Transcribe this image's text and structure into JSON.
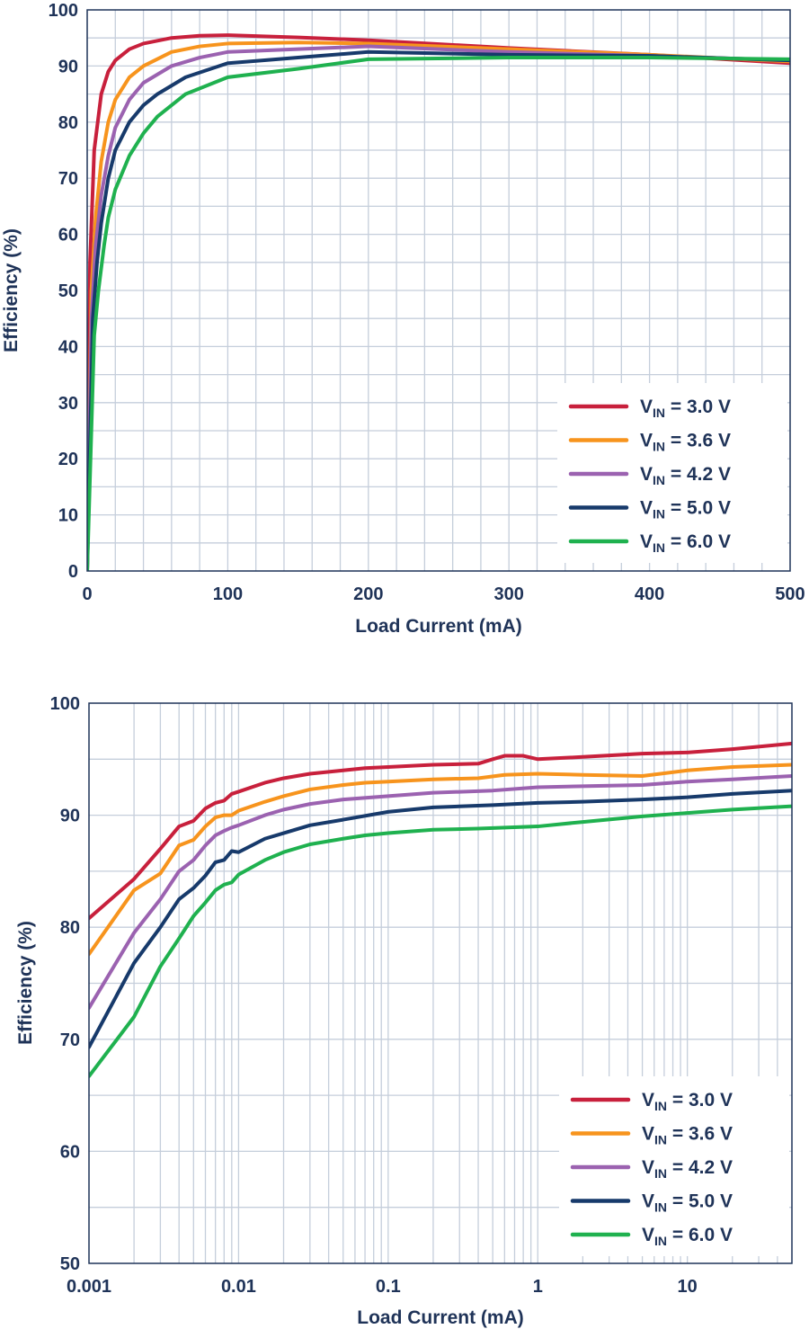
{
  "chart_data": [
    {
      "type": "line",
      "xscale": "linear",
      "xlabel": "Load Current (mA)",
      "ylabel": "Efficiency (%)",
      "xlim": [
        0,
        500
      ],
      "ylim": [
        0,
        100
      ],
      "xticks": [
        0,
        100,
        200,
        300,
        400,
        500
      ],
      "xtick_labels": [
        "0",
        "100",
        "200",
        "300",
        "400",
        "500"
      ],
      "yticks": [
        0,
        10,
        20,
        30,
        40,
        50,
        60,
        70,
        80,
        90,
        100
      ],
      "ytick_labels": [
        "0",
        "10",
        "20",
        "30",
        "40",
        "50",
        "60",
        "70",
        "80",
        "90",
        "100"
      ],
      "grid": true,
      "legend_position": "bottom-right",
      "series": [
        {
          "label_main": "V",
          "label_sub": "IN",
          "label_rest": " = 3.0 V",
          "color": "#c8203c",
          "points": [
            [
              0,
              0
            ],
            [
              2,
              55
            ],
            [
              5,
              75
            ],
            [
              10,
              85
            ],
            [
              15,
              89
            ],
            [
              20,
              91
            ],
            [
              30,
              93
            ],
            [
              40,
              94
            ],
            [
              60,
              95
            ],
            [
              80,
              95.4
            ],
            [
              100,
              95.5
            ],
            [
              150,
              95.1
            ],
            [
              200,
              94.6
            ],
            [
              300,
              93.2
            ],
            [
              400,
              92
            ],
            [
              500,
              90.5
            ]
          ]
        },
        {
          "label_main": "V",
          "label_sub": "IN",
          "label_rest": " = 3.6 V",
          "color": "#f7941d",
          "points": [
            [
              0,
              0
            ],
            [
              3,
              50
            ],
            [
              6,
              63
            ],
            [
              10,
              73
            ],
            [
              15,
              80
            ],
            [
              20,
              84
            ],
            [
              30,
              88
            ],
            [
              40,
              90
            ],
            [
              60,
              92.5
            ],
            [
              80,
              93.5
            ],
            [
              100,
              94
            ],
            [
              150,
              94.2
            ],
            [
              200,
              94
            ],
            [
              300,
              93
            ],
            [
              400,
              92
            ],
            [
              500,
              90.8
            ]
          ]
        },
        {
          "label_main": "V",
          "label_sub": "IN",
          "label_rest": " = 4.2 V",
          "color": "#9b62b0",
          "points": [
            [
              0,
              0
            ],
            [
              3,
              45
            ],
            [
              6,
              58
            ],
            [
              10,
              67
            ],
            [
              15,
              74
            ],
            [
              20,
              79
            ],
            [
              30,
              84
            ],
            [
              40,
              87
            ],
            [
              60,
              90
            ],
            [
              80,
              91.5
            ],
            [
              100,
              92.5
            ],
            [
              150,
              93
            ],
            [
              200,
              93.5
            ],
            [
              300,
              92.5
            ],
            [
              400,
              91.8
            ],
            [
              500,
              91
            ]
          ]
        },
        {
          "label_main": "V",
          "label_sub": "IN",
          "label_rest": " = 5.0 V",
          "color": "#173a6b",
          "points": [
            [
              0,
              0
            ],
            [
              4,
              45
            ],
            [
              7,
              55
            ],
            [
              10,
              62
            ],
            [
              15,
              70
            ],
            [
              20,
              75
            ],
            [
              30,
              80
            ],
            [
              40,
              83
            ],
            [
              50,
              85
            ],
            [
              70,
              88
            ],
            [
              100,
              90.5
            ],
            [
              150,
              91.5
            ],
            [
              200,
              92.5
            ],
            [
              300,
              92
            ],
            [
              400,
              91.8
            ],
            [
              500,
              91
            ]
          ]
        },
        {
          "label_main": "V",
          "label_sub": "IN",
          "label_rest": " = 6.0 V",
          "color": "#1fb14f",
          "points": [
            [
              0,
              0
            ],
            [
              5,
              42
            ],
            [
              8,
              50
            ],
            [
              12,
              58
            ],
            [
              15,
              63
            ],
            [
              20,
              68
            ],
            [
              30,
              74
            ],
            [
              40,
              78
            ],
            [
              50,
              81
            ],
            [
              70,
              85
            ],
            [
              100,
              88
            ],
            [
              150,
              89.5
            ],
            [
              200,
              91.2
            ],
            [
              300,
              91.5
            ],
            [
              400,
              91.5
            ],
            [
              500,
              91.2
            ]
          ]
        }
      ]
    },
    {
      "type": "line",
      "xscale": "log",
      "xlabel": "Load Current (mA)",
      "ylabel": "Efficiency (%)",
      "xlim": [
        0.001,
        50
      ],
      "ylim": [
        50,
        100
      ],
      "xticks": [
        0.001,
        0.01,
        0.1,
        1,
        10
      ],
      "xtick_labels": [
        "0.001",
        "0.01",
        "0.1",
        "1",
        "10"
      ],
      "yticks": [
        50,
        60,
        70,
        80,
        90,
        100
      ],
      "ytick_labels": [
        "50",
        "60",
        "70",
        "80",
        "90",
        "100"
      ],
      "grid": true,
      "legend_position": "bottom-right",
      "series": [
        {
          "label_main": "V",
          "label_sub": "IN",
          "label_rest": " = 3.0 V",
          "color": "#c8203c",
          "points": [
            [
              0.001,
              80.8
            ],
            [
              0.002,
              84.3
            ],
            [
              0.003,
              87
            ],
            [
              0.004,
              89
            ],
            [
              0.005,
              89.5
            ],
            [
              0.006,
              90.6
            ],
            [
              0.007,
              91.1
            ],
            [
              0.008,
              91.3
            ],
            [
              0.009,
              91.9
            ],
            [
              0.01,
              92.1
            ],
            [
              0.015,
              92.9
            ],
            [
              0.02,
              93.3
            ],
            [
              0.03,
              93.7
            ],
            [
              0.05,
              94
            ],
            [
              0.07,
              94.2
            ],
            [
              0.1,
              94.3
            ],
            [
              0.2,
              94.5
            ],
            [
              0.4,
              94.6
            ],
            [
              0.5,
              95
            ],
            [
              0.6,
              95.3
            ],
            [
              0.8,
              95.3
            ],
            [
              1,
              95
            ],
            [
              2,
              95.2
            ],
            [
              5,
              95.5
            ],
            [
              10,
              95.6
            ],
            [
              20,
              95.9
            ],
            [
              50,
              96.4
            ]
          ]
        },
        {
          "label_main": "V",
          "label_sub": "IN",
          "label_rest": " = 3.6 V",
          "color": "#f7941d",
          "points": [
            [
              0.001,
              77.6
            ],
            [
              0.002,
              83.3
            ],
            [
              0.003,
              84.8
            ],
            [
              0.004,
              87.3
            ],
            [
              0.005,
              87.8
            ],
            [
              0.006,
              89
            ],
            [
              0.007,
              89.8
            ],
            [
              0.008,
              90
            ],
            [
              0.009,
              90
            ],
            [
              0.01,
              90.4
            ],
            [
              0.015,
              91.2
            ],
            [
              0.02,
              91.7
            ],
            [
              0.03,
              92.3
            ],
            [
              0.05,
              92.7
            ],
            [
              0.07,
              92.9
            ],
            [
              0.1,
              93
            ],
            [
              0.2,
              93.2
            ],
            [
              0.4,
              93.3
            ],
            [
              0.6,
              93.6
            ],
            [
              1,
              93.7
            ],
            [
              2,
              93.6
            ],
            [
              5,
              93.5
            ],
            [
              10,
              94
            ],
            [
              20,
              94.3
            ],
            [
              50,
              94.5
            ]
          ]
        },
        {
          "label_main": "V",
          "label_sub": "IN",
          "label_rest": " = 4.2 V",
          "color": "#9b62b0",
          "points": [
            [
              0.001,
              72.8
            ],
            [
              0.002,
              79.5
            ],
            [
              0.003,
              82.5
            ],
            [
              0.004,
              85
            ],
            [
              0.005,
              86
            ],
            [
              0.006,
              87.3
            ],
            [
              0.007,
              88.2
            ],
            [
              0.008,
              88.6
            ],
            [
              0.009,
              88.9
            ],
            [
              0.01,
              89.1
            ],
            [
              0.015,
              90
            ],
            [
              0.02,
              90.5
            ],
            [
              0.03,
              91
            ],
            [
              0.05,
              91.4
            ],
            [
              0.1,
              91.7
            ],
            [
              0.2,
              92
            ],
            [
              0.5,
              92.2
            ],
            [
              1,
              92.5
            ],
            [
              5,
              92.7
            ],
            [
              10,
              93
            ],
            [
              20,
              93.2
            ],
            [
              50,
              93.5
            ]
          ]
        },
        {
          "label_main": "V",
          "label_sub": "IN",
          "label_rest": " = 5.0 V",
          "color": "#173a6b",
          "points": [
            [
              0.001,
              69.3
            ],
            [
              0.002,
              76.8
            ],
            [
              0.003,
              80
            ],
            [
              0.004,
              82.5
            ],
            [
              0.005,
              83.5
            ],
            [
              0.006,
              84.6
            ],
            [
              0.007,
              85.8
            ],
            [
              0.008,
              86
            ],
            [
              0.009,
              86.8
            ],
            [
              0.01,
              86.7
            ],
            [
              0.015,
              87.9
            ],
            [
              0.02,
              88.4
            ],
            [
              0.03,
              89.1
            ],
            [
              0.05,
              89.6
            ],
            [
              0.1,
              90.3
            ],
            [
              0.2,
              90.7
            ],
            [
              0.5,
              90.9
            ],
            [
              1,
              91.1
            ],
            [
              2,
              91.2
            ],
            [
              5,
              91.4
            ],
            [
              10,
              91.6
            ],
            [
              20,
              91.9
            ],
            [
              50,
              92.2
            ]
          ]
        },
        {
          "label_main": "V",
          "label_sub": "IN",
          "label_rest": " = 6.0 V",
          "color": "#1fb14f",
          "points": [
            [
              0.001,
              66.7
            ],
            [
              0.002,
              72
            ],
            [
              0.003,
              76.5
            ],
            [
              0.004,
              79
            ],
            [
              0.005,
              81
            ],
            [
              0.006,
              82.2
            ],
            [
              0.007,
              83.3
            ],
            [
              0.008,
              83.8
            ],
            [
              0.009,
              84
            ],
            [
              0.01,
              84.7
            ],
            [
              0.015,
              86
            ],
            [
              0.02,
              86.7
            ],
            [
              0.03,
              87.4
            ],
            [
              0.05,
              87.9
            ],
            [
              0.07,
              88.2
            ],
            [
              0.1,
              88.4
            ],
            [
              0.2,
              88.7
            ],
            [
              0.4,
              88.8
            ],
            [
              1,
              89
            ],
            [
              2,
              89.4
            ],
            [
              5,
              89.9
            ],
            [
              10,
              90.2
            ],
            [
              20,
              90.5
            ],
            [
              50,
              90.8
            ]
          ]
        }
      ]
    }
  ]
}
